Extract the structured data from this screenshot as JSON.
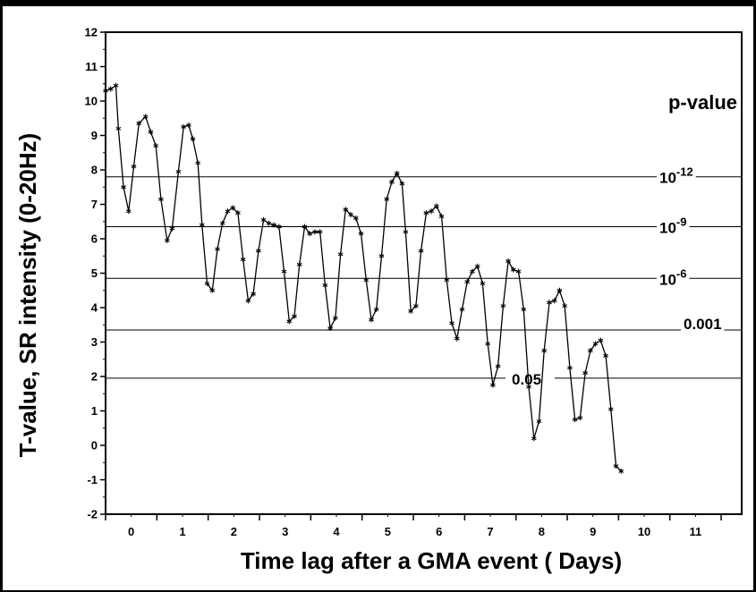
{
  "chart_data": {
    "type": "line",
    "title": "",
    "xlabel": "Time lag after a GMA event ( Days)",
    "ylabel": "T-value, SR intensity (0-20Hz)",
    "xlim": [
      -0.5,
      11.9
    ],
    "ylim": [
      -2,
      12
    ],
    "x_ticks": [
      "0",
      "1",
      "2",
      "3",
      "4",
      "5",
      "6",
      "7",
      "8",
      "9",
      "10",
      "11"
    ],
    "y_ticks": [
      "-2",
      "-1",
      "0",
      "1",
      "2",
      "3",
      "4",
      "5",
      "6",
      "7",
      "8",
      "9",
      "10",
      "11",
      "12"
    ],
    "grid": false,
    "legend_title": "p-value",
    "thresholds": [
      {
        "value": 7.8,
        "label_base": "10",
        "label_exp": "-12"
      },
      {
        "value": 6.35,
        "label_base": "10",
        "label_exp": "-9"
      },
      {
        "value": 4.85,
        "label_base": "10",
        "label_exp": "-6"
      },
      {
        "value": 3.35,
        "label_base": "0.001",
        "label_exp": ""
      },
      {
        "value": 1.95,
        "label_base": "0.05",
        "label_exp": ""
      }
    ],
    "series": [
      {
        "marker": "asterisk",
        "color": "#000000",
        "points": [
          [
            -0.5,
            10.3
          ],
          [
            -0.4,
            10.35
          ],
          [
            -0.3,
            10.45
          ],
          [
            -0.25,
            9.2
          ],
          [
            -0.15,
            7.5
          ],
          [
            -0.05,
            6.8
          ],
          [
            0.05,
            8.1
          ],
          [
            0.15,
            9.35
          ],
          [
            0.28,
            9.55
          ],
          [
            0.38,
            9.1
          ],
          [
            0.48,
            8.7
          ],
          [
            0.58,
            7.15
          ],
          [
            0.7,
            5.95
          ],
          [
            0.8,
            6.3
          ],
          [
            0.92,
            7.95
          ],
          [
            1.02,
            9.25
          ],
          [
            1.12,
            9.3
          ],
          [
            1.2,
            8.9
          ],
          [
            1.3,
            8.2
          ],
          [
            1.38,
            6.4
          ],
          [
            1.48,
            4.7
          ],
          [
            1.58,
            4.5
          ],
          [
            1.68,
            5.7
          ],
          [
            1.78,
            6.45
          ],
          [
            1.88,
            6.8
          ],
          [
            1.98,
            6.9
          ],
          [
            2.08,
            6.75
          ],
          [
            2.18,
            5.4
          ],
          [
            2.28,
            4.2
          ],
          [
            2.38,
            4.4
          ],
          [
            2.48,
            5.65
          ],
          [
            2.58,
            6.55
          ],
          [
            2.68,
            6.45
          ],
          [
            2.78,
            6.4
          ],
          [
            2.88,
            6.35
          ],
          [
            2.98,
            5.05
          ],
          [
            3.08,
            3.6
          ],
          [
            3.18,
            3.75
          ],
          [
            3.28,
            5.25
          ],
          [
            3.38,
            6.35
          ],
          [
            3.48,
            6.15
          ],
          [
            3.58,
            6.2
          ],
          [
            3.68,
            6.2
          ],
          [
            3.78,
            4.65
          ],
          [
            3.88,
            3.4
          ],
          [
            3.98,
            3.7
          ],
          [
            4.08,
            5.55
          ],
          [
            4.18,
            6.85
          ],
          [
            4.28,
            6.7
          ],
          [
            4.38,
            6.6
          ],
          [
            4.48,
            6.15
          ],
          [
            4.58,
            4.8
          ],
          [
            4.68,
            3.65
          ],
          [
            4.78,
            3.95
          ],
          [
            4.88,
            5.5
          ],
          [
            4.98,
            7.15
          ],
          [
            5.08,
            7.65
          ],
          [
            5.18,
            7.9
          ],
          [
            5.28,
            7.6
          ],
          [
            5.35,
            6.2
          ],
          [
            5.45,
            3.9
          ],
          [
            5.55,
            4.05
          ],
          [
            5.65,
            5.65
          ],
          [
            5.75,
            6.75
          ],
          [
            5.85,
            6.8
          ],
          [
            5.95,
            6.95
          ],
          [
            6.05,
            6.65
          ],
          [
            6.15,
            4.8
          ],
          [
            6.25,
            3.55
          ],
          [
            6.35,
            3.1
          ],
          [
            6.45,
            3.95
          ],
          [
            6.55,
            4.75
          ],
          [
            6.65,
            5.05
          ],
          [
            6.75,
            5.2
          ],
          [
            6.85,
            4.7
          ],
          [
            6.95,
            2.95
          ],
          [
            7.05,
            1.75
          ],
          [
            7.15,
            2.3
          ],
          [
            7.25,
            4.05
          ],
          [
            7.35,
            5.35
          ],
          [
            7.45,
            5.1
          ],
          [
            7.55,
            5.05
          ],
          [
            7.65,
            3.95
          ],
          [
            7.75,
            1.7
          ],
          [
            7.85,
            0.2
          ],
          [
            7.95,
            0.7
          ],
          [
            8.05,
            2.75
          ],
          [
            8.15,
            4.15
          ],
          [
            8.25,
            4.2
          ],
          [
            8.35,
            4.5
          ],
          [
            8.45,
            4.05
          ],
          [
            8.55,
            2.25
          ],
          [
            8.65,
            0.75
          ],
          [
            8.75,
            0.8
          ],
          [
            8.85,
            2.1
          ],
          [
            8.95,
            2.75
          ],
          [
            9.05,
            2.95
          ],
          [
            9.15,
            3.05
          ],
          [
            9.25,
            2.6
          ],
          [
            9.35,
            1.05
          ],
          [
            9.45,
            -0.6
          ],
          [
            9.55,
            -0.75
          ]
        ]
      }
    ]
  }
}
